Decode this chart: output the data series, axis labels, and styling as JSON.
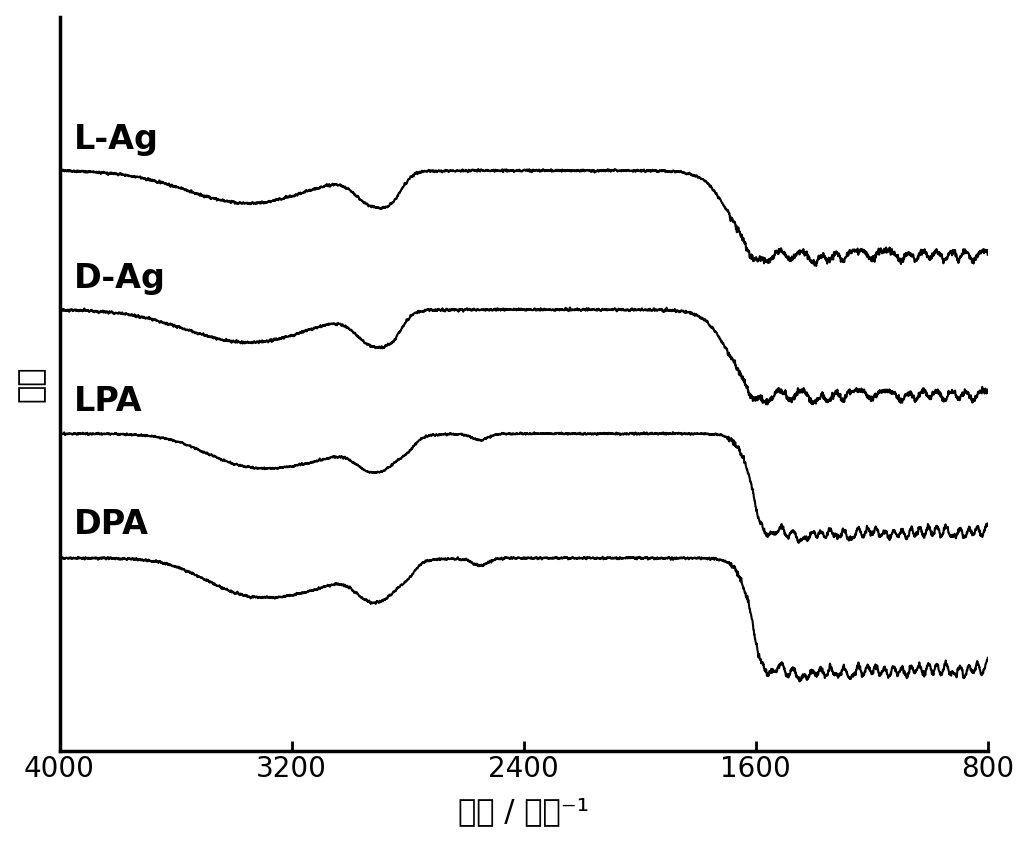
{
  "xlabel": "波数 / 厘米⁻¹",
  "ylabel": "强度",
  "xlim": [
    4000,
    800
  ],
  "xticks": [
    4000,
    3200,
    2400,
    1600,
    800
  ],
  "xticklabels": [
    "4000",
    "3200",
    "2400",
    "1600",
    "800"
  ],
  "labels": [
    "L-Ag",
    "D-Ag",
    "LPA",
    "DPA"
  ],
  "offsets": [
    3.0,
    2.0,
    1.0,
    0.0
  ],
  "background_color": "#ffffff",
  "line_color": "#000000",
  "fontsize_axis": 22,
  "fontsize_tick": 20,
  "fontsize_label": 24
}
